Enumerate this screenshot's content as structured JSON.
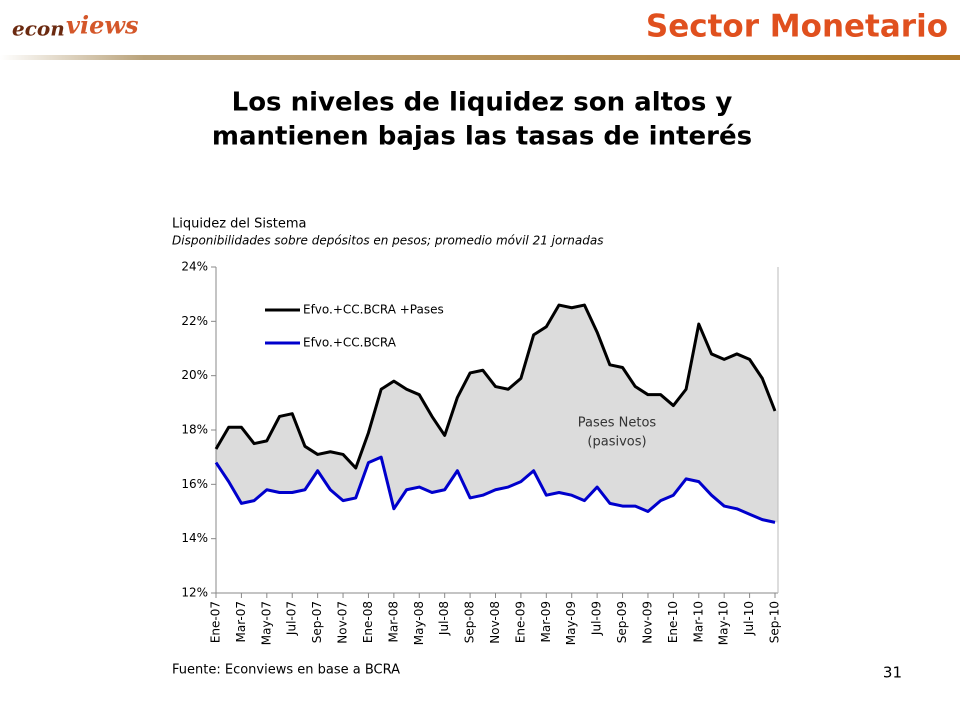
{
  "header": {
    "logo_parts": [
      "econ",
      "views"
    ],
    "section": "Sector Monetario",
    "title_lines": [
      "Los niveles de liquidez son altos y",
      "mantienen bajas las tasas de interés"
    ]
  },
  "chart_data": {
    "type": "line",
    "title": "Liquidez del Sistema",
    "subtitle": "Disponibilidades sobre depósitos en pesos; promedio móvil 21 jornadas",
    "categories": [
      "Ene-07",
      null,
      "Mar-07",
      null,
      "May-07",
      null,
      "Jul-07",
      null,
      "Sep-07",
      null,
      "Nov-07",
      null,
      "Ene-08",
      null,
      "Mar-08",
      null,
      "May-08",
      null,
      "Jul-08",
      null,
      "Sep-08",
      null,
      "Nov-08",
      null,
      "Ene-09",
      null,
      "Mar-09",
      null,
      "May-09",
      null,
      "Jul-09",
      null,
      "Sep-09",
      null,
      "Nov-09",
      null,
      "Ene-10",
      null,
      "Mar-10",
      null,
      "May-10",
      null,
      "Jul-10",
      null,
      "Sep-10"
    ],
    "series": [
      {
        "name": "Efvo.+CC.BCRA +Pases",
        "color": "#000000",
        "values": [
          17.3,
          18.1,
          18.1,
          17.5,
          17.6,
          18.5,
          18.6,
          17.4,
          17.1,
          17.2,
          17.1,
          16.6,
          17.9,
          19.5,
          19.8,
          19.5,
          19.3,
          18.5,
          17.8,
          19.2,
          20.1,
          20.2,
          19.6,
          19.5,
          19.9,
          21.5,
          21.8,
          22.6,
          22.5,
          22.6,
          21.6,
          20.4,
          20.3,
          19.6,
          19.3,
          19.3,
          18.9,
          19.5,
          21.9,
          20.8,
          20.6,
          20.8,
          20.6,
          19.9,
          18.7
        ]
      },
      {
        "name": "Efvo.+CC.BCRA",
        "color": "#0000cc",
        "values": [
          16.8,
          16.1,
          15.3,
          15.4,
          15.8,
          15.7,
          15.7,
          15.8,
          16.5,
          15.8,
          15.4,
          15.5,
          16.8,
          17.0,
          15.1,
          15.8,
          15.9,
          15.7,
          15.8,
          16.5,
          15.5,
          15.6,
          15.8,
          15.9,
          16.1,
          16.5,
          15.6,
          15.7,
          15.6,
          15.4,
          15.9,
          15.3,
          15.2,
          15.2,
          15.0,
          15.4,
          15.6,
          16.2,
          16.1,
          15.6,
          15.2,
          15.1,
          14.9,
          14.7,
          14.6
        ]
      }
    ],
    "area_color": "#dcdcdc",
    "annotation_lines": [
      "Pases Netos",
      "(pasivos)"
    ],
    "ylim": [
      12,
      24
    ],
    "yticks": [
      {
        "value": 12,
        "label": "12%"
      },
      {
        "value": 14,
        "label": "14%"
      },
      {
        "value": 16,
        "label": "16%"
      },
      {
        "value": 18,
        "label": "18%"
      },
      {
        "value": 20,
        "label": "20%"
      },
      {
        "value": 22,
        "label": "22%"
      },
      {
        "value": 24,
        "label": "24%"
      }
    ],
    "legend": "upper left",
    "source": "Fuente: Econviews en base a BCRA"
  },
  "page_number": "31"
}
